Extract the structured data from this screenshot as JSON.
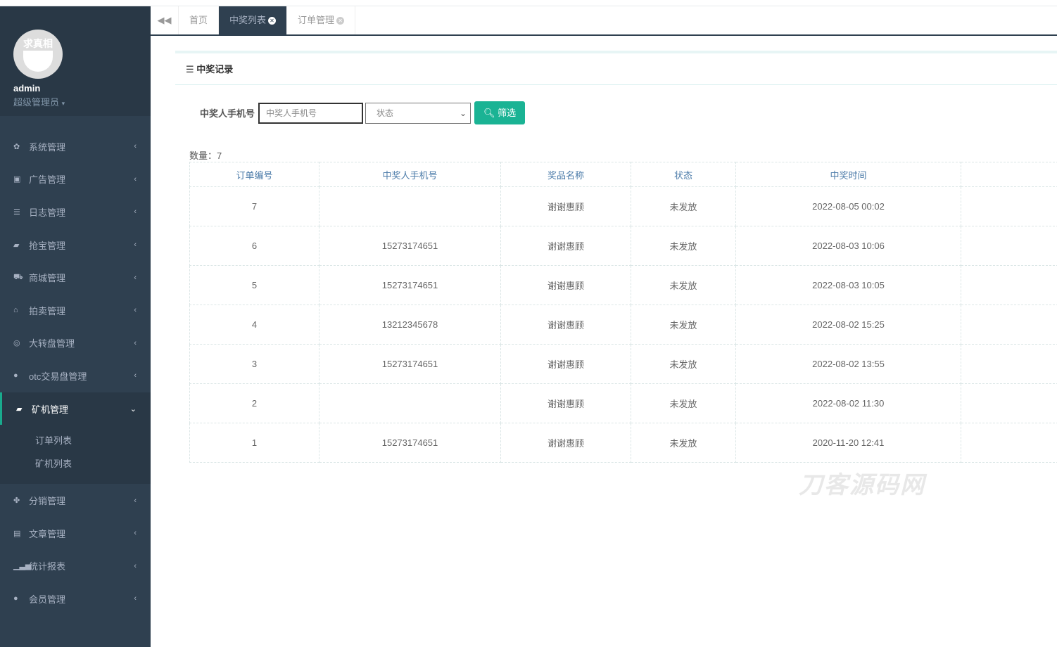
{
  "sidebar": {
    "avatar_text": "求真相",
    "username": "admin",
    "role": "超级管理员",
    "items": [
      {
        "label": "系统管理",
        "icon": "gear-icon",
        "glyph": "✿"
      },
      {
        "label": "广告管理",
        "icon": "image-icon",
        "glyph": "▣"
      },
      {
        "label": "日志管理",
        "icon": "list-icon",
        "glyph": "☰"
      },
      {
        "label": "抢宝管理",
        "icon": "book-icon",
        "glyph": "▰"
      },
      {
        "label": "商城管理",
        "icon": "cart-icon",
        "glyph": "⛟"
      },
      {
        "label": "拍卖管理",
        "icon": "bank-icon",
        "glyph": "⌂"
      },
      {
        "label": "大转盘管理",
        "icon": "gamepad-icon",
        "glyph": "◎"
      },
      {
        "label": "otc交易盘管理",
        "icon": "user-icon",
        "glyph": "●"
      },
      {
        "label": "矿机管理",
        "icon": "book-icon",
        "glyph": "▰",
        "active": true,
        "children": [
          "订单列表",
          "矿机列表"
        ]
      },
      {
        "label": "分销管理",
        "icon": "cubes-icon",
        "glyph": "✤"
      },
      {
        "label": "文章管理",
        "icon": "archive-icon",
        "glyph": "▤"
      },
      {
        "label": "统计报表",
        "icon": "bar-chart-icon",
        "glyph": "▁▃▅"
      },
      {
        "label": "会员管理",
        "icon": "user-icon",
        "glyph": "●"
      }
    ]
  },
  "tabs": [
    {
      "label": "首页"
    },
    {
      "label": "中奖列表",
      "active": true
    },
    {
      "label": "订单管理"
    }
  ],
  "panel": {
    "title": "中奖记录"
  },
  "filter": {
    "label": "中奖人手机号",
    "placeholder": "中奖人手机号",
    "status_value": "状态",
    "button": "筛选"
  },
  "count": "数量：7",
  "table": {
    "headers": [
      "订单编号",
      "中奖人手机号",
      "奖品名称",
      "状态",
      "中奖时间",
      ""
    ],
    "rows": [
      [
        "7",
        "",
        "谢谢惠顾",
        "未发放",
        "2022-08-05 00:02",
        ""
      ],
      [
        "6",
        "15273174651",
        "谢谢惠顾",
        "未发放",
        "2022-08-03 10:06",
        ""
      ],
      [
        "5",
        "15273174651",
        "谢谢惠顾",
        "未发放",
        "2022-08-03 10:05",
        ""
      ],
      [
        "4",
        "13212345678",
        "谢谢惠顾",
        "未发放",
        "2022-08-02 15:25",
        ""
      ],
      [
        "3",
        "15273174651",
        "谢谢惠顾",
        "未发放",
        "2022-08-02 13:55",
        ""
      ],
      [
        "2",
        "",
        "谢谢惠顾",
        "未发放",
        "2022-08-02 11:30",
        ""
      ],
      [
        "1",
        "15273174651",
        "谢谢惠顾",
        "未发放",
        "2020-11-20 12:41",
        ""
      ]
    ]
  },
  "watermark": "刀客源码网",
  "colors": {
    "sidebar": "#2f4050",
    "accent": "#1ab394"
  }
}
